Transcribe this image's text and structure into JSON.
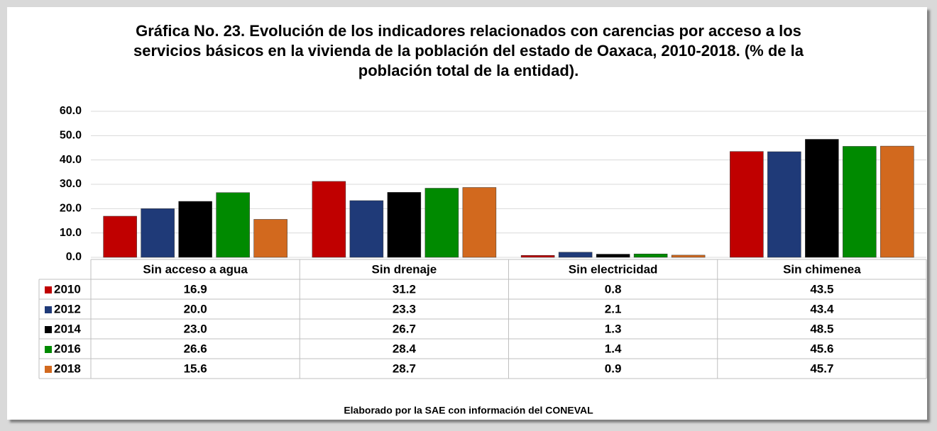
{
  "chart_data": {
    "type": "bar",
    "title": "Gráfica No. 23. Evolución de los indicadores relacionados con carencias por acceso a los servicios básicos en la vivienda de la población del estado de Oaxaca, 2010-2018. (% de la población total de la entidad).",
    "source": "Elaborado por la SAE con información del CONEVAL",
    "categories": [
      "Sin acceso a agua",
      "Sin drenaje",
      "Sin electricidad",
      "Sin chimenea"
    ],
    "series": [
      {
        "name": "2010",
        "color": "#c00000",
        "values": [
          16.9,
          31.2,
          0.8,
          43.5
        ],
        "value_labels": [
          "16.9",
          "31.2",
          "0.8",
          "43.5"
        ]
      },
      {
        "name": "2012",
        "color": "#1f3a78",
        "values": [
          20.0,
          23.3,
          2.1,
          43.4
        ],
        "value_labels": [
          "20.0",
          "23.3",
          "2.1",
          "43.4"
        ]
      },
      {
        "name": "2014",
        "color": "#000000",
        "values": [
          23.0,
          26.7,
          1.3,
          48.5
        ],
        "value_labels": [
          "23.0",
          "26.7",
          "1.3",
          "48.5"
        ]
      },
      {
        "name": "2016",
        "color": "#008a00",
        "values": [
          26.6,
          28.4,
          1.4,
          45.6
        ],
        "value_labels": [
          "26.6",
          "28.4",
          "1.4",
          "45.6"
        ]
      },
      {
        "name": "2018",
        "color": "#d2691e",
        "values": [
          15.6,
          28.7,
          0.9,
          45.7
        ],
        "value_labels": [
          "15.6",
          "28.7",
          "0.9",
          "45.7"
        ]
      }
    ],
    "ylim": [
      0,
      60
    ],
    "yticks": [
      {
        "value": 0,
        "label": "0.0"
      },
      {
        "value": 10,
        "label": "10.0"
      },
      {
        "value": 20,
        "label": "20.0"
      },
      {
        "value": 30,
        "label": "30.0"
      },
      {
        "value": 40,
        "label": "40.0"
      },
      {
        "value": 50,
        "label": "50.0"
      },
      {
        "value": 60,
        "label": "60.0"
      }
    ],
    "grid": true,
    "data_table": true
  }
}
